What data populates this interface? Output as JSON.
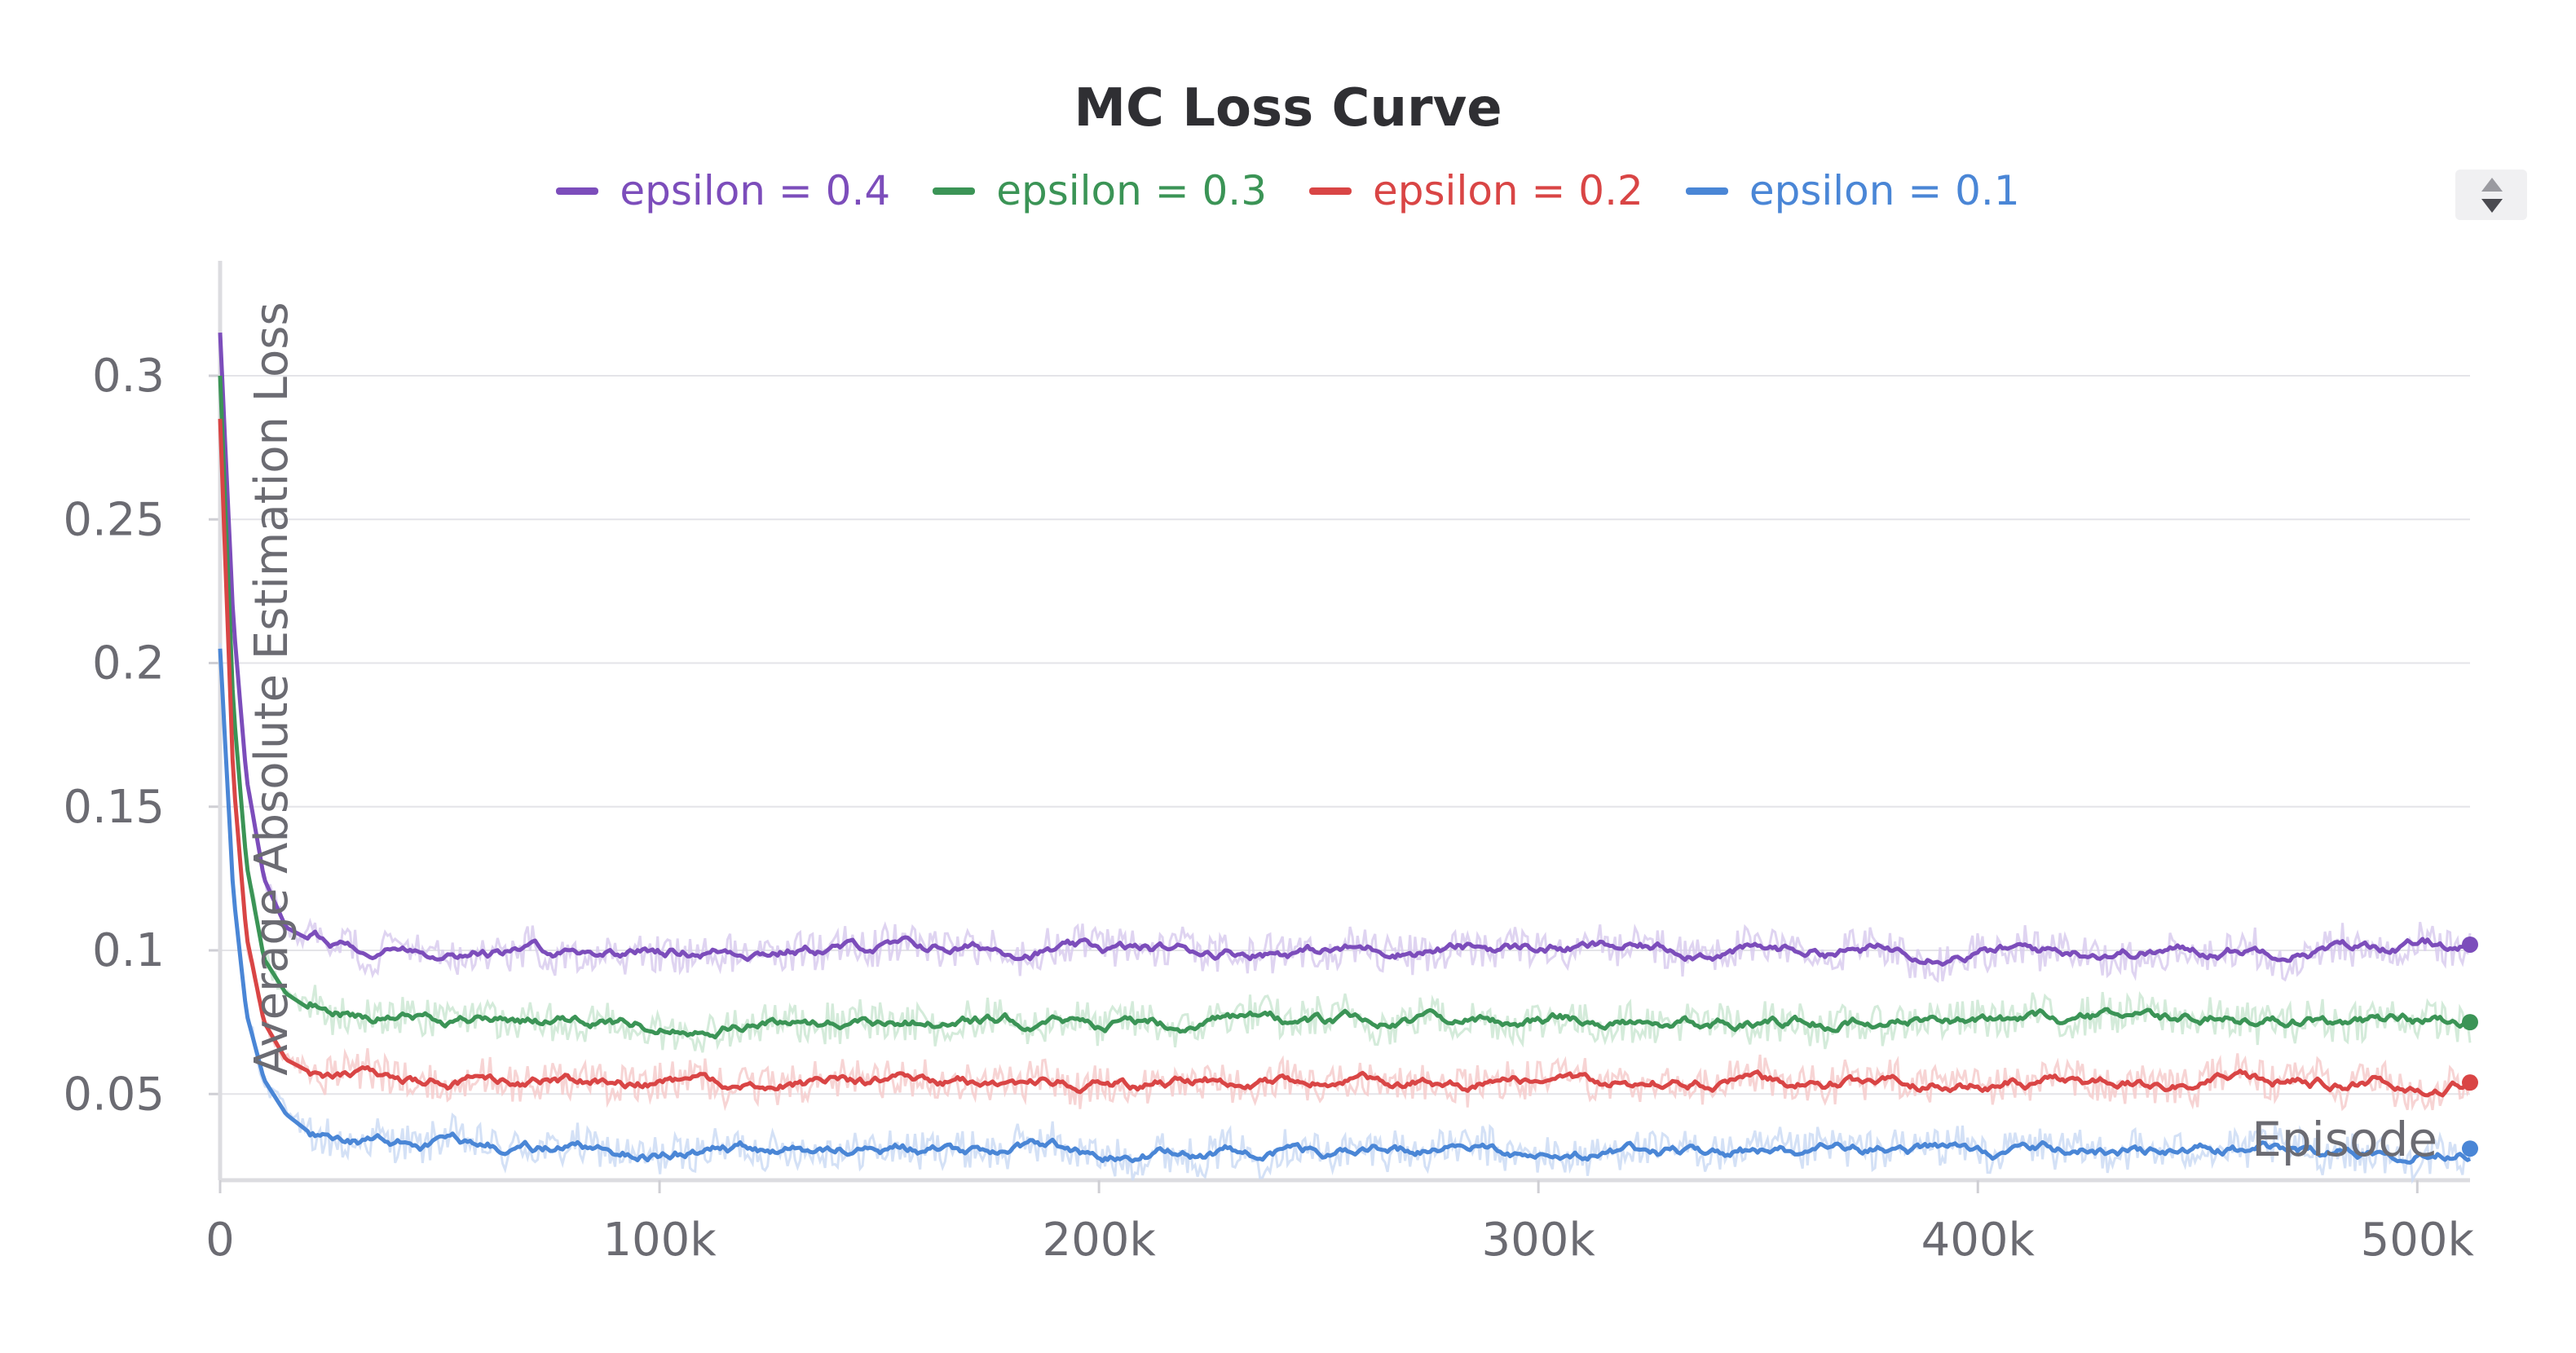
{
  "chart_data": {
    "type": "line",
    "title": "MC Loss Curve",
    "xlabel": "Episode",
    "ylabel": "Average Absolute Estimation Loss",
    "xlim": [
      0,
      512000
    ],
    "ylim": [
      0.02,
      0.34
    ],
    "x_ticks": [
      {
        "value": 0,
        "label": "0"
      },
      {
        "value": 100000,
        "label": "100k"
      },
      {
        "value": 200000,
        "label": "200k"
      },
      {
        "value": 300000,
        "label": "300k"
      },
      {
        "value": 400000,
        "label": "400k"
      },
      {
        "value": 500000,
        "label": "500k"
      }
    ],
    "y_ticks": [
      {
        "value": 0.05,
        "label": "0.05"
      },
      {
        "value": 0.1,
        "label": "0.1"
      },
      {
        "value": 0.15,
        "label": "0.15"
      },
      {
        "value": 0.2,
        "label": "0.2"
      },
      {
        "value": 0.25,
        "label": "0.25"
      },
      {
        "value": 0.3,
        "label": "0.3"
      }
    ],
    "grid": "horizontal",
    "legend_position": "top-center",
    "smoothed_with_raw_shadow": true,
    "series": [
      {
        "name": "epsilon = 0.4",
        "color": "#7c4dbb",
        "shadow_color": "#d9ccef",
        "x": [
          0,
          3000,
          6000,
          10000,
          15000,
          20000,
          30000,
          40000,
          60000,
          80000,
          100000,
          150000,
          200000,
          250000,
          300000,
          350000,
          400000,
          450000,
          512000
        ],
        "y": [
          0.315,
          0.215,
          0.16,
          0.125,
          0.108,
          0.104,
          0.102,
          0.101,
          0.1,
          0.1,
          0.1,
          0.101,
          0.1,
          0.1,
          0.101,
          0.1,
          0.1,
          0.1,
          0.102
        ]
      },
      {
        "name": "epsilon = 0.3",
        "color": "#3b9456",
        "shadow_color": "#cde7d4",
        "x": [
          0,
          3000,
          6000,
          10000,
          15000,
          20000,
          30000,
          40000,
          60000,
          80000,
          100000,
          150000,
          200000,
          250000,
          300000,
          350000,
          400000,
          450000,
          512000
        ],
        "y": [
          0.3,
          0.185,
          0.13,
          0.097,
          0.085,
          0.08,
          0.078,
          0.077,
          0.076,
          0.075,
          0.074,
          0.076,
          0.075,
          0.075,
          0.076,
          0.075,
          0.076,
          0.076,
          0.075
        ]
      },
      {
        "name": "epsilon = 0.2",
        "color": "#d94545",
        "shadow_color": "#f6cccc",
        "x": [
          0,
          3000,
          6000,
          10000,
          15000,
          20000,
          30000,
          40000,
          60000,
          80000,
          100000,
          150000,
          200000,
          250000,
          300000,
          350000,
          400000,
          450000,
          512000
        ],
        "y": [
          0.285,
          0.16,
          0.105,
          0.075,
          0.062,
          0.058,
          0.056,
          0.055,
          0.054,
          0.054,
          0.054,
          0.054,
          0.054,
          0.054,
          0.054,
          0.054,
          0.054,
          0.054,
          0.054
        ]
      },
      {
        "name": "epsilon = 0.1",
        "color": "#4a86d6",
        "shadow_color": "#ccdcf4",
        "x": [
          0,
          3000,
          6000,
          10000,
          15000,
          20000,
          30000,
          40000,
          60000,
          80000,
          100000,
          150000,
          200000,
          250000,
          300000,
          350000,
          400000,
          450000,
          512000
        ],
        "y": [
          0.205,
          0.12,
          0.078,
          0.055,
          0.043,
          0.037,
          0.034,
          0.033,
          0.032,
          0.031,
          0.03,
          0.031,
          0.03,
          0.03,
          0.03,
          0.03,
          0.03,
          0.03,
          0.031
        ]
      }
    ]
  }
}
